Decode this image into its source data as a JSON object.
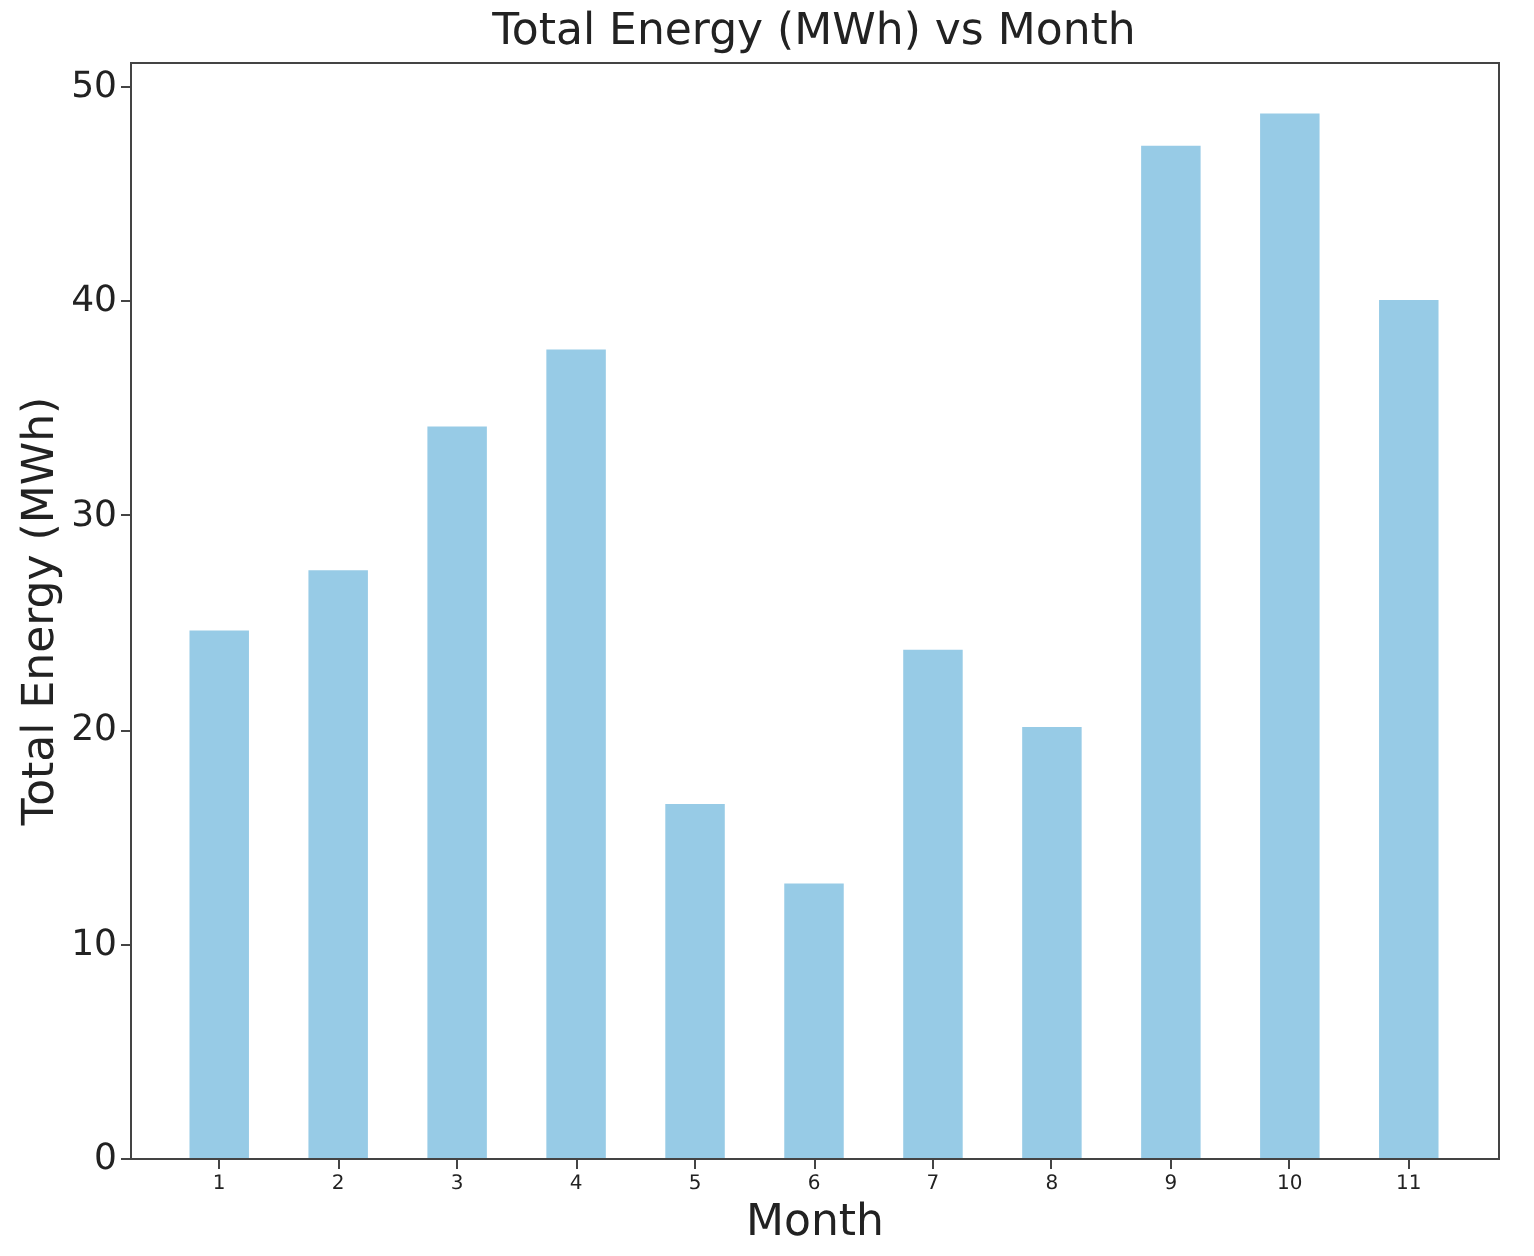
{
  "chart_data": {
    "type": "bar",
    "title": "Total Energy (MWh) vs Month",
    "xlabel": "Month",
    "ylabel": "Total Energy (MWh)",
    "categories": [
      "1",
      "2",
      "3",
      "4",
      "5",
      "6",
      "7",
      "8",
      "9",
      "10",
      "11"
    ],
    "values": [
      24.6,
      27.4,
      34.1,
      37.7,
      16.5,
      12.8,
      23.7,
      20.1,
      47.2,
      48.7,
      40.0
    ],
    "color": "#97cbe6",
    "ylim": [
      0,
      51.1
    ],
    "yticks": [
      0,
      10,
      20,
      30,
      40,
      50
    ],
    "grid": false,
    "legend": false
  }
}
